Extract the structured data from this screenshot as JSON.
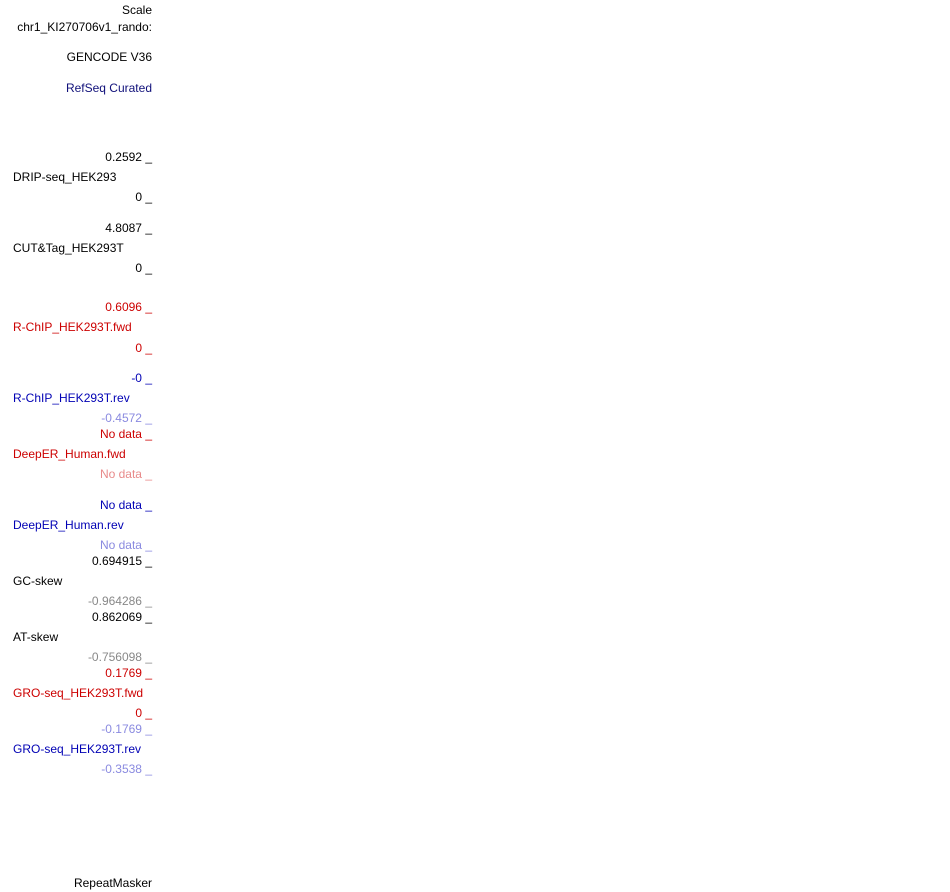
{
  "header": {
    "scale": "Scale",
    "position": "chr1_KI270706v1_rando:"
  },
  "annotation_tracks": [
    "GENCODE V36",
    "RefSeq Curated",
    "RepeatMasker"
  ],
  "tracks": [
    {
      "name": "DRIP-seq_HEK293",
      "max": "0.2592 _",
      "min": "0 _"
    },
    {
      "name": "CUT&Tag_HEK293T",
      "max": "4.8087 _",
      "min": "0 _"
    },
    {
      "name": "R-ChIP_HEK293T.fwd",
      "max": "0.6096 _",
      "min": "0 _"
    },
    {
      "name": "R-ChIP_HEK293T.rev",
      "max": "-0 _",
      "min": "-0.4572 _"
    },
    {
      "name": "DeepER_Human.fwd",
      "max": "No data _",
      "min": "No data _"
    },
    {
      "name": "DeepER_Human.rev",
      "max": "No data _",
      "min": "No data _"
    },
    {
      "name": "GC-skew",
      "max": "0.694915 _",
      "min": "-0.964286 _"
    },
    {
      "name": "AT-skew",
      "max": "0.862069 _",
      "min": "-0.756098 _"
    },
    {
      "name": "GRO-seq_HEK293T.fwd",
      "max": "0.1769 _",
      "min": "0 _"
    },
    {
      "name": "GRO-seq_HEK293T.rev",
      "max": "-0.1769 _",
      "min": "-0.3538 _"
    }
  ]
}
